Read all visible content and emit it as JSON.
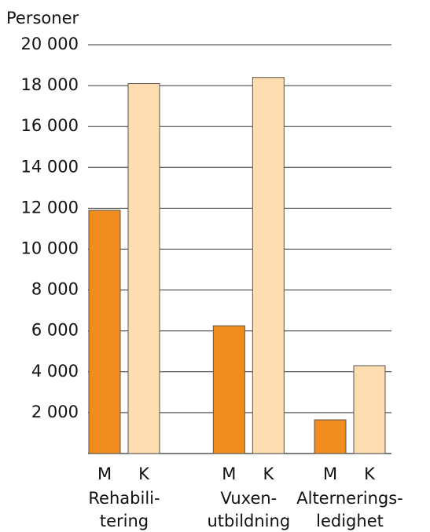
{
  "chart_data": {
    "type": "bar",
    "ylabel": "Personer",
    "categories": [
      [
        "Rehabili-",
        "tering"
      ],
      [
        "Vuxen-",
        "utbildning"
      ],
      [
        "Alternerings-",
        "ledighet"
      ]
    ],
    "series": [
      {
        "name": "M",
        "color": "#f08c1e",
        "values": [
          11900,
          6250,
          1650
        ]
      },
      {
        "name": "K",
        "color": "#fddcb0",
        "values": [
          18100,
          18400,
          4300
        ]
      }
    ],
    "ylim": [
      0,
      20000
    ],
    "yticks": [
      {
        "value": 2000,
        "label": "2 000"
      },
      {
        "value": 4000,
        "label": "4 000"
      },
      {
        "value": 6000,
        "label": "6 000"
      },
      {
        "value": 8000,
        "label": "8 000"
      },
      {
        "value": 10000,
        "label": "10 000"
      },
      {
        "value": 12000,
        "label": "12 000"
      },
      {
        "value": 14000,
        "label": "14 000"
      },
      {
        "value": 16000,
        "label": "16 000"
      },
      {
        "value": 18000,
        "label": "18 000"
      },
      {
        "value": 20000,
        "label": "20 000"
      }
    ],
    "grid": true
  }
}
